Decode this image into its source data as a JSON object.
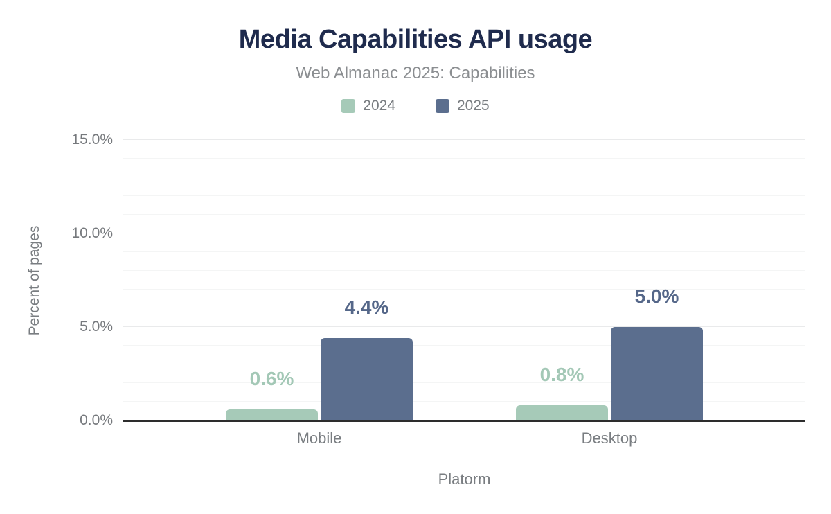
{
  "chart_data": {
    "type": "bar",
    "title": "Media Capabilities API usage",
    "subtitle": "Web Almanac 2025: Capabilities",
    "categories": [
      "Mobile",
      "Desktop"
    ],
    "series": [
      {
        "name": "2024",
        "color": "#a6cab8",
        "label_color": "#a3c8b6",
        "values": [
          0.6,
          0.8
        ],
        "labels": [
          "0.6%",
          "0.8%"
        ]
      },
      {
        "name": "2025",
        "color": "#5b6e8e",
        "label_color": "#556789",
        "values": [
          4.4,
          5.0
        ],
        "labels": [
          "4.4%",
          "5.0%"
        ]
      }
    ],
    "xlabel": "Platorm",
    "ylabel": "Percent of pages",
    "ylim": [
      0,
      15
    ],
    "yticks": [
      {
        "value": 0,
        "label": "0.0%"
      },
      {
        "value": 5,
        "label": "5.0%"
      },
      {
        "value": 10,
        "label": "10.0%"
      },
      {
        "value": 15,
        "label": "15.0%"
      }
    ],
    "grid": {
      "minor_step": 1,
      "major_step": 5,
      "visible": true
    },
    "legend_position": "top"
  }
}
